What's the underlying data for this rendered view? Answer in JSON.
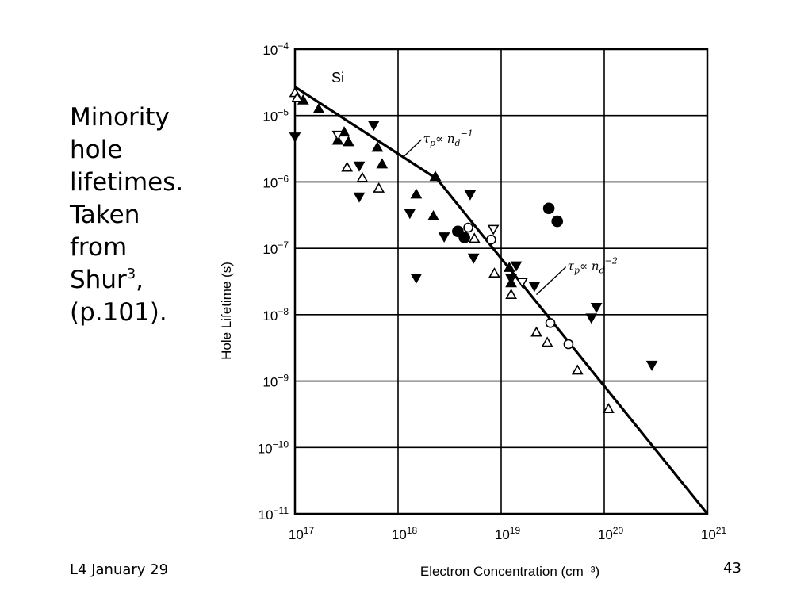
{
  "slide": {
    "caption_lines": [
      "Minority",
      "hole",
      "lifetimes.",
      "Taken",
      "from"
    ],
    "caption_source": "Shur",
    "caption_source_sup": "3",
    "caption_source_tail": ",",
    "caption_page": "(p.101).",
    "footer_left": "L4 January 29",
    "page_number": "43"
  },
  "chart_data": {
    "type": "scatter",
    "title": "",
    "panel_label": "Si",
    "xlabel": "Electron Concentration (cm⁻³)",
    "ylabel": "Hole Lifetime (s)",
    "x_scale": "log",
    "y_scale": "log",
    "xlim": [
      1e+17,
      1e+21
    ],
    "ylim": [
      1e-11,
      0.0001
    ],
    "grid": true,
    "x_ticks": [
      {
        "value": 1e+17,
        "base": "10",
        "exp": "17"
      },
      {
        "value": 1e+18,
        "base": "10",
        "exp": "18"
      },
      {
        "value": 1e+19,
        "base": "10",
        "exp": "19"
      },
      {
        "value": 1e+20,
        "base": "10",
        "exp": "20"
      },
      {
        "value": 1e+21,
        "base": "10",
        "exp": "21"
      }
    ],
    "y_ticks": [
      {
        "value": 0.0001,
        "base": "10",
        "exp": "−4"
      },
      {
        "value": 1e-05,
        "base": "10",
        "exp": "−5"
      },
      {
        "value": 1e-06,
        "base": "10",
        "exp": "−6"
      },
      {
        "value": 1e-07,
        "base": "10",
        "exp": "−7"
      },
      {
        "value": 1e-08,
        "base": "10",
        "exp": "−8"
      },
      {
        "value": 1e-09,
        "base": "10",
        "exp": "−9"
      },
      {
        "value": 1e-10,
        "base": "10",
        "exp": "−10"
      },
      {
        "value": 1e-11,
        "base": "10",
        "exp": "−11"
      }
    ],
    "fit_line": {
      "points": [
        [
          1e+17,
          2.7e-05
        ],
        [
          2.4e+18,
          1.1e-06
        ],
        [
          1e+21,
          1e-11
        ]
      ]
    },
    "annotations": [
      {
        "text_main": "τ",
        "text_sub": "p",
        "text_mid": "∝ n",
        "text_sub2": "d",
        "text_sup": "−1",
        "x": 1.75e+18,
        "y": 3.9e-06
      },
      {
        "text_main": "τ",
        "text_sub": "p",
        "text_mid": "∝ n",
        "text_sub2": "d",
        "text_sup": "−2",
        "x": 4.4e+19,
        "y": 4.7e-08
      }
    ],
    "series": [
      {
        "marker": "filled-circle",
        "points": [
          [
            3.8e+18,
            1.8e-07
          ],
          [
            4.4e+18,
            1.45e-07
          ],
          [
            2.9e+19,
            4e-07
          ],
          [
            3.5e+19,
            2.55e-07
          ]
        ]
      },
      {
        "marker": "open-circle",
        "points": [
          [
            4.8e+18,
            2.05e-07
          ],
          [
            8e+18,
            1.35e-07
          ],
          [
            3e+19,
            7.5e-09
          ],
          [
            4.5e+19,
            3.6e-09
          ]
        ]
      },
      {
        "marker": "filled-triangle-up",
        "points": [
          [
            1.2e+17,
            1.7e-05
          ],
          [
            1.7e+17,
            1.25e-05
          ],
          [
            3e+17,
            5.6e-06
          ],
          [
            2.6e+17,
            4.2e-06
          ],
          [
            3.3e+17,
            4e-06
          ],
          [
            6.3e+17,
            3.3e-06
          ],
          [
            7e+17,
            1.85e-06
          ],
          [
            1.5e+18,
            6.5e-07
          ],
          [
            2.3e+18,
            1.2e-06
          ],
          [
            2.2e+18,
            3.05e-07
          ],
          [
            1.2e+19,
            5.1e-08
          ],
          [
            1.25e+19,
            3e-08
          ]
        ]
      },
      {
        "marker": "open-triangle-up",
        "points": [
          [
            1e+17,
            2.2e-05
          ],
          [
            1.05e+17,
            1.85e-05
          ],
          [
            3.2e+17,
            1.65e-06
          ],
          [
            4.5e+17,
            1.15e-06
          ],
          [
            6.5e+17,
            8e-07
          ],
          [
            5.5e+18,
            1.4e-07
          ],
          [
            8.6e+18,
            4.2e-08
          ],
          [
            1.25e+19,
            2e-08
          ],
          [
            2.2e+19,
            5.4e-09
          ],
          [
            2.8e+19,
            3.8e-09
          ],
          [
            5.5e+19,
            1.45e-09
          ],
          [
            1.1e+20,
            3.8e-10
          ]
        ]
      },
      {
        "marker": "filled-triangle-down",
        "points": [
          [
            1e+17,
            4.8e-06
          ],
          [
            5.8e+17,
            7.2e-06
          ],
          [
            4.2e+17,
            1.75e-06
          ],
          [
            4.2e+17,
            6e-07
          ],
          [
            1.3e+18,
            3.4e-07
          ],
          [
            1.5e+18,
            3.6e-08
          ],
          [
            2.8e+18,
            1.5e-07
          ],
          [
            5e+18,
            6.5e-07
          ],
          [
            5.4e+18,
            7.2e-08
          ],
          [
            1.25e+19,
            3.5e-08
          ],
          [
            1.4e+19,
            5.5e-08
          ],
          [
            2.1e+19,
            2.7e-08
          ],
          [
            7.5e+19,
            9e-09
          ],
          [
            8.4e+19,
            1.3e-08
          ],
          [
            2.9e+20,
            1.75e-09
          ]
        ]
      },
      {
        "marker": "open-triangle-down",
        "points": [
          [
            2.6e+17,
            5.1e-06
          ],
          [
            8.4e+18,
            1.95e-07
          ],
          [
            1.6e+19,
            3.1e-08
          ]
        ]
      }
    ]
  }
}
